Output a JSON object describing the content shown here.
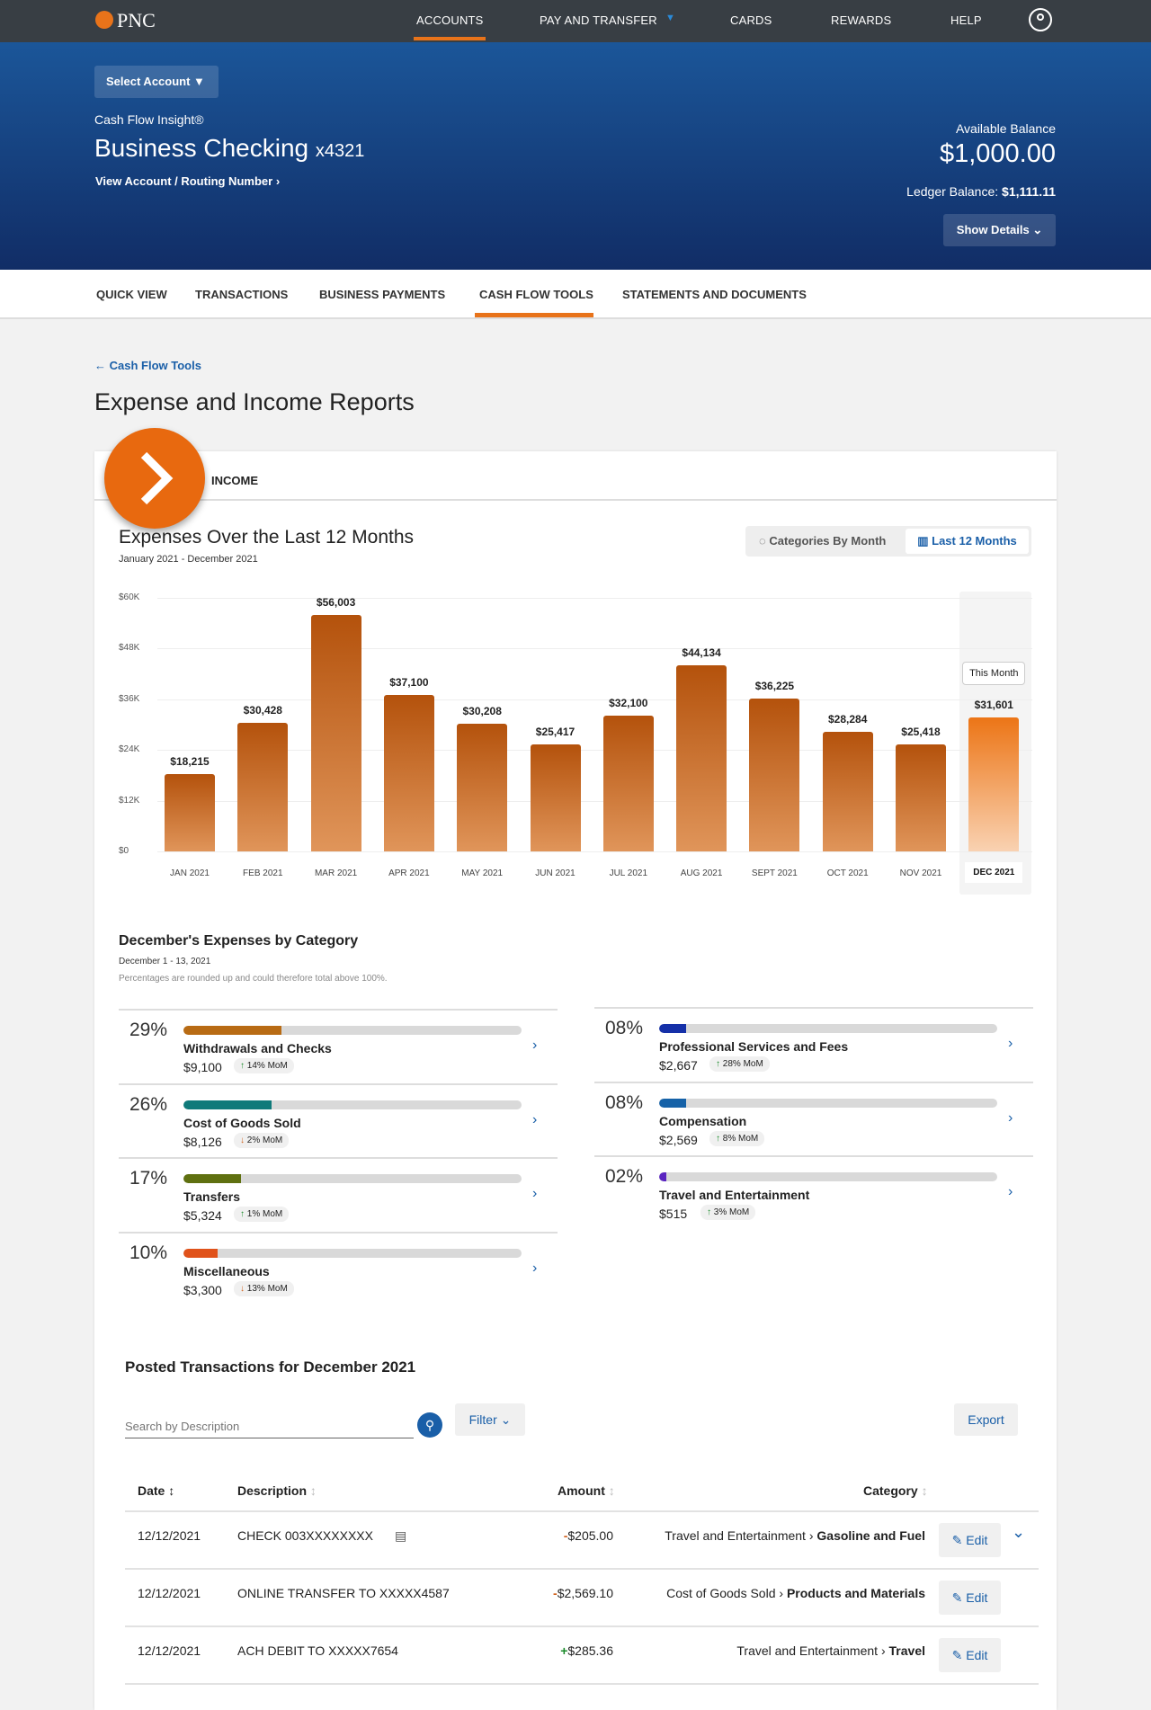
{
  "nav": {
    "brand": "PNC",
    "items": [
      "ACCOUNTS",
      "PAY AND TRANSFER",
      "CARDS",
      "REWARDS",
      "HELP"
    ],
    "active": "ACCOUNTS",
    "accent": "#e8731a"
  },
  "hero": {
    "select_account": "Select Account",
    "product": "Cash Flow Insight®",
    "account_name": "Business Checking",
    "account_mask": "x4321",
    "view_link": "View Account / Routing Number",
    "available_label": "Available Balance",
    "available": "$1,000.00",
    "ledger_label": "Ledger Balance:",
    "ledger": "$1,111.11",
    "show_details": "Show Details"
  },
  "tabs": [
    "QUICK VIEW",
    "TRANSACTIONS",
    "BUSINESS PAYMENTS",
    "CASH FLOW TOOLS",
    "STATEMENTS AND DOCUMENTS"
  ],
  "back_link": "Cash Flow Tools",
  "page_title": "Expense and Income Reports",
  "card_tab": "INCOME",
  "chart_data": {
    "type": "bar",
    "title": "Expenses Over the Last 12 Months",
    "subtitle": "January 2021 - December 2021",
    "toggle": [
      "Categories By Month",
      "Last 12 Months"
    ],
    "categories": [
      "JAN 2021",
      "FEB 2021",
      "MAR 2021",
      "APR 2021",
      "MAY 2021",
      "JUN 2021",
      "JUL 2021",
      "AUG 2021",
      "SEPT 2021",
      "OCT 2021",
      "NOV 2021",
      "DEC 2021"
    ],
    "values": [
      18215,
      30428,
      56003,
      37100,
      30208,
      25417,
      32100,
      44134,
      36225,
      28284,
      25418,
      31601
    ],
    "labels": [
      "$18,215",
      "$30,428",
      "$56,003",
      "$37,100",
      "$30,208",
      "$25,417",
      "$32,100",
      "$44,134",
      "$36,225",
      "$28,284",
      "$25,418",
      "$31,601"
    ],
    "yticks": [
      "$0",
      "$12K",
      "$24K",
      "$36K",
      "$48K",
      "$60K"
    ],
    "ylim": [
      0,
      60000
    ],
    "grid": true,
    "highlight": "DEC 2021",
    "highlight_tooltip": "This Month"
  },
  "categories": {
    "title": "December's Expenses by Category",
    "range": "December 1 - 13, 2021",
    "note": "Percentages are rounded up and could therefore total above 100%.",
    "items": [
      {
        "pct": "29%",
        "value": 29,
        "name": "Withdrawals and Checks",
        "amount": "$9,100",
        "mom": "14% MoM",
        "dir": "up",
        "color": "#b86b14"
      },
      {
        "pct": "26%",
        "value": 26,
        "name": "Cost of Goods Sold",
        "amount": "$8,126",
        "mom": "2% MoM",
        "dir": "down",
        "color": "#0f7a7a"
      },
      {
        "pct": "17%",
        "value": 17,
        "name": "Transfers",
        "amount": "$5,324",
        "mom": "1% MoM",
        "dir": "up",
        "color": "#5f7010"
      },
      {
        "pct": "10%",
        "value": 10,
        "name": "Miscellaneous",
        "amount": "$3,300",
        "mom": "13% MoM",
        "dir": "down",
        "color": "#e0521a"
      },
      {
        "pct": "08%",
        "value": 8,
        "name": "Professional Services and Fees",
        "amount": "$2,667",
        "mom": "28% MoM",
        "dir": "up",
        "color": "#1530a8"
      },
      {
        "pct": "08%",
        "value": 8,
        "name": "Compensation",
        "amount": "$2,569",
        "mom": "8% MoM",
        "dir": "up",
        "color": "#1662a8"
      },
      {
        "pct": "02%",
        "value": 2,
        "name": "Travel and Entertainment",
        "amount": "$515",
        "mom": "3% MoM",
        "dir": "up",
        "color": "#5a25c0"
      }
    ]
  },
  "transactions": {
    "title": "Posted Transactions for December 2021",
    "search_placeholder": "Search by Description",
    "filter": "Filter",
    "export": "Export",
    "headers": [
      "Date",
      "Description",
      "Amount",
      "Category"
    ],
    "edit": "Edit",
    "rows": [
      {
        "date": "12/12/2021",
        "desc": "CHECK 003XXXXXXXX",
        "sign": "-",
        "amount": "$205.00",
        "cat": "Travel and Entertainment",
        "sub": "Gasoline and Fuel"
      },
      {
        "date": "12/12/2021",
        "desc": "ONLINE TRANSFER TO XXXXX4587",
        "sign": "-",
        "amount": "$2,569.10",
        "cat": "Cost of Goods Sold",
        "sub": "Products and Materials"
      },
      {
        "date": "12/12/2021",
        "desc": "ACH DEBIT TO XXXXX7654",
        "sign": "+",
        "amount": "$285.36",
        "cat": "Travel and Entertainment",
        "sub": "Travel"
      }
    ]
  }
}
